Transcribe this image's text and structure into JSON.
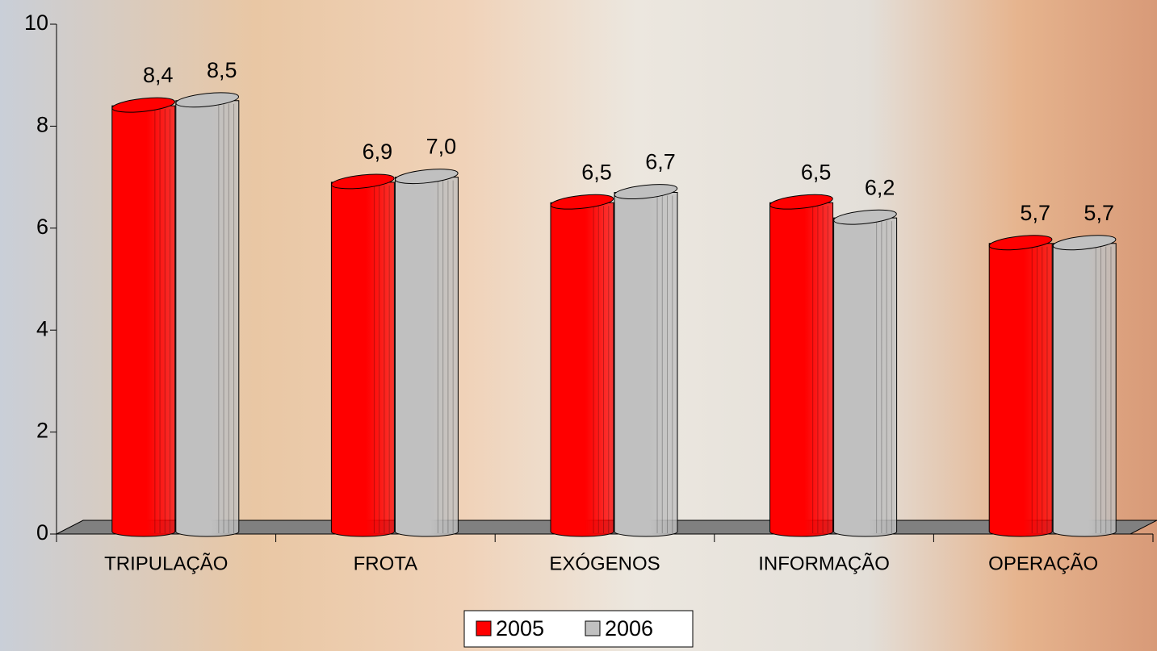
{
  "chart_data": {
    "type": "bar",
    "categories": [
      "TRIPULAÇÃO",
      "FROTA",
      "EXÓGENOS",
      "INFORMAÇÃO",
      "OPERAÇÃO"
    ],
    "series": [
      {
        "name": "2005",
        "color": "#ff0000",
        "values": [
          8.4,
          6.9,
          6.5,
          6.5,
          5.7
        ],
        "value_labels": [
          "8,4",
          "6,9",
          "6,5",
          "6,5",
          "5,7"
        ]
      },
      {
        "name": "2006",
        "color": "#c0c0c0",
        "values": [
          8.5,
          7.0,
          6.7,
          6.2,
          5.7
        ],
        "value_labels": [
          "8,5",
          "7,0",
          "6,7",
          "6,2",
          "5,7"
        ]
      }
    ],
    "ylim": [
      0,
      10
    ],
    "yticks": [
      0,
      2,
      4,
      6,
      8,
      10
    ],
    "legend": "bottom"
  }
}
